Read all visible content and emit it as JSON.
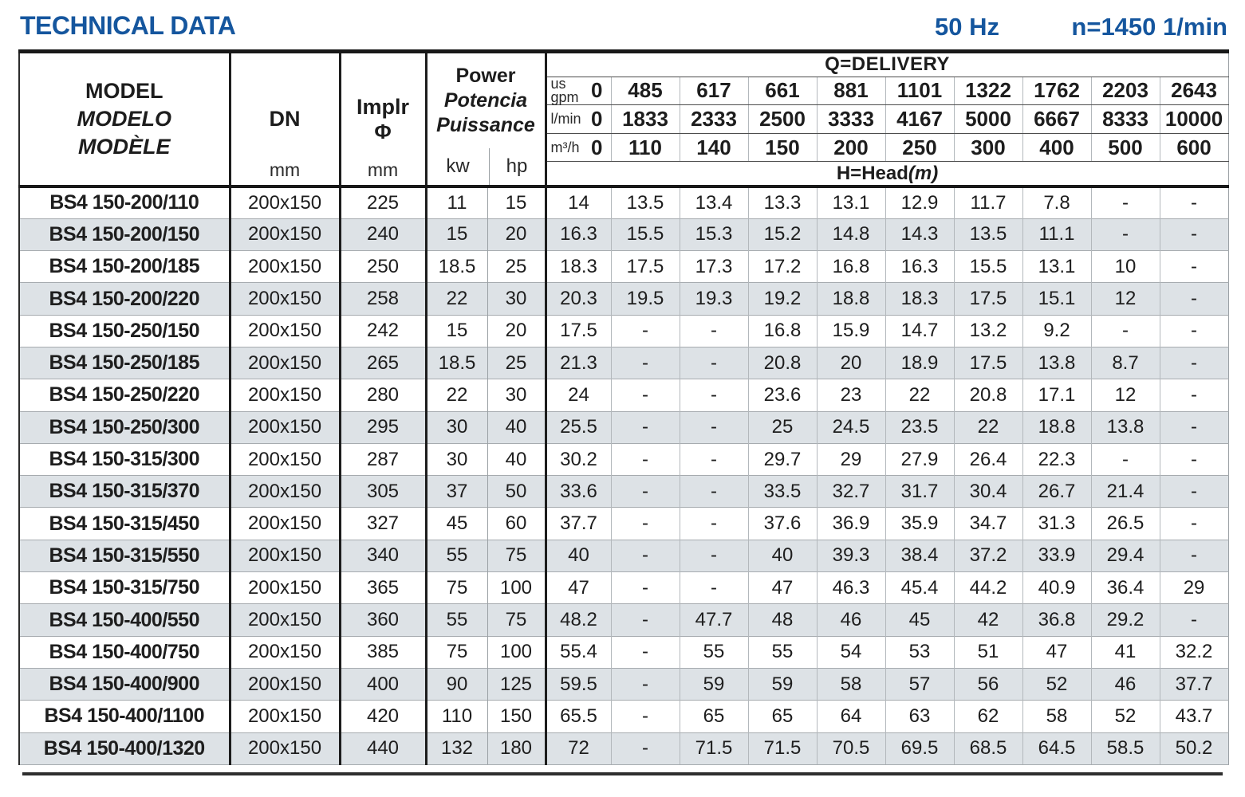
{
  "header": {
    "title": "TECHNICAL DATA",
    "frequency": "50 Hz",
    "speed": "n=1450 1/min"
  },
  "table": {
    "model_header": {
      "en": "MODEL",
      "es": "MODELO",
      "fr": "MODÈLE"
    },
    "dn": {
      "label": "DN",
      "unit": "mm"
    },
    "implr": {
      "label": "Implr",
      "symbol": "Φ",
      "unit": "mm"
    },
    "power": {
      "en": "Power",
      "es": "Potencia",
      "fr": "Puissance",
      "unit_kw": "kw",
      "unit_hp": "hp"
    },
    "delivery": {
      "label": "Q=DELIVERY",
      "units": [
        "us gpm",
        "l/min",
        "m³/h"
      ],
      "us_gpm": [
        "0",
        "485",
        "617",
        "661",
        "881",
        "1101",
        "1322",
        "1762",
        "2203",
        "2643"
      ],
      "l_min": [
        "0",
        "1833",
        "2333",
        "2500",
        "3333",
        "4167",
        "5000",
        "6667",
        "8333",
        "10000"
      ],
      "m3_h": [
        "0",
        "110",
        "140",
        "150",
        "200",
        "250",
        "300",
        "400",
        "500",
        "600"
      ],
      "head_label": "H=Head",
      "head_unit": "(m)"
    },
    "rows": [
      {
        "model": "BS4 150-200/110",
        "dn": "200x150",
        "implr": "225",
        "kw": "11",
        "hp": "15",
        "head": [
          "14",
          "13.5",
          "13.4",
          "13.3",
          "13.1",
          "12.9",
          "11.7",
          "7.8",
          "-",
          "-"
        ]
      },
      {
        "model": "BS4 150-200/150",
        "dn": "200x150",
        "implr": "240",
        "kw": "15",
        "hp": "20",
        "head": [
          "16.3",
          "15.5",
          "15.3",
          "15.2",
          "14.8",
          "14.3",
          "13.5",
          "11.1",
          "-",
          "-"
        ]
      },
      {
        "model": "BS4 150-200/185",
        "dn": "200x150",
        "implr": "250",
        "kw": "18.5",
        "hp": "25",
        "head": [
          "18.3",
          "17.5",
          "17.3",
          "17.2",
          "16.8",
          "16.3",
          "15.5",
          "13.1",
          "10",
          "-"
        ]
      },
      {
        "model": "BS4 150-200/220",
        "dn": "200x150",
        "implr": "258",
        "kw": "22",
        "hp": "30",
        "head": [
          "20.3",
          "19.5",
          "19.3",
          "19.2",
          "18.8",
          "18.3",
          "17.5",
          "15.1",
          "12",
          "-"
        ]
      },
      {
        "model": "BS4 150-250/150",
        "dn": "200x150",
        "implr": "242",
        "kw": "15",
        "hp": "20",
        "head": [
          "17.5",
          "-",
          "-",
          "16.8",
          "15.9",
          "14.7",
          "13.2",
          "9.2",
          "-",
          "-"
        ]
      },
      {
        "model": "BS4 150-250/185",
        "dn": "200x150",
        "implr": "265",
        "kw": "18.5",
        "hp": "25",
        "head": [
          "21.3",
          "-",
          "-",
          "20.8",
          "20",
          "18.9",
          "17.5",
          "13.8",
          "8.7",
          "-"
        ]
      },
      {
        "model": "BS4 150-250/220",
        "dn": "200x150",
        "implr": "280",
        "kw": "22",
        "hp": "30",
        "head": [
          "24",
          "-",
          "-",
          "23.6",
          "23",
          "22",
          "20.8",
          "17.1",
          "12",
          "-"
        ]
      },
      {
        "model": "BS4 150-250/300",
        "dn": "200x150",
        "implr": "295",
        "kw": "30",
        "hp": "40",
        "head": [
          "25.5",
          "-",
          "-",
          "25",
          "24.5",
          "23.5",
          "22",
          "18.8",
          "13.8",
          "-"
        ]
      },
      {
        "model": "BS4 150-315/300",
        "dn": "200x150",
        "implr": "287",
        "kw": "30",
        "hp": "40",
        "head": [
          "30.2",
          "-",
          "-",
          "29.7",
          "29",
          "27.9",
          "26.4",
          "22.3",
          "-",
          "-"
        ]
      },
      {
        "model": "BS4 150-315/370",
        "dn": "200x150",
        "implr": "305",
        "kw": "37",
        "hp": "50",
        "head": [
          "33.6",
          "-",
          "-",
          "33.5",
          "32.7",
          "31.7",
          "30.4",
          "26.7",
          "21.4",
          "-"
        ]
      },
      {
        "model": "BS4 150-315/450",
        "dn": "200x150",
        "implr": "327",
        "kw": "45",
        "hp": "60",
        "head": [
          "37.7",
          "-",
          "-",
          "37.6",
          "36.9",
          "35.9",
          "34.7",
          "31.3",
          "26.5",
          "-"
        ]
      },
      {
        "model": "BS4 150-315/550",
        "dn": "200x150",
        "implr": "340",
        "kw": "55",
        "hp": "75",
        "head": [
          "40",
          "-",
          "-",
          "40",
          "39.3",
          "38.4",
          "37.2",
          "33.9",
          "29.4",
          "-"
        ]
      },
      {
        "model": "BS4 150-315/750",
        "dn": "200x150",
        "implr": "365",
        "kw": "75",
        "hp": "100",
        "head": [
          "47",
          "-",
          "-",
          "47",
          "46.3",
          "45.4",
          "44.2",
          "40.9",
          "36.4",
          "29"
        ]
      },
      {
        "model": "BS4 150-400/550",
        "dn": "200x150",
        "implr": "360",
        "kw": "55",
        "hp": "75",
        "head": [
          "48.2",
          "-",
          "47.7",
          "48",
          "46",
          "45",
          "42",
          "36.8",
          "29.2",
          "-"
        ]
      },
      {
        "model": "BS4 150-400/750",
        "dn": "200x150",
        "implr": "385",
        "kw": "75",
        "hp": "100",
        "head": [
          "55.4",
          "-",
          "55",
          "55",
          "54",
          "53",
          "51",
          "47",
          "41",
          "32.2"
        ]
      },
      {
        "model": "BS4 150-400/900",
        "dn": "200x150",
        "implr": "400",
        "kw": "90",
        "hp": "125",
        "head": [
          "59.5",
          "-",
          "59",
          "59",
          "58",
          "57",
          "56",
          "52",
          "46",
          "37.7"
        ]
      },
      {
        "model": "BS4 150-400/1100",
        "dn": "200x150",
        "implr": "420",
        "kw": "110",
        "hp": "150",
        "head": [
          "65.5",
          "-",
          "65",
          "65",
          "64",
          "63",
          "62",
          "58",
          "52",
          "43.7"
        ]
      },
      {
        "model": "BS4 150-400/1320",
        "dn": "200x150",
        "implr": "440",
        "kw": "132",
        "hp": "180",
        "head": [
          "72",
          "-",
          "71.5",
          "71.5",
          "70.5",
          "69.5",
          "68.5",
          "64.5",
          "58.5",
          "50.2"
        ]
      }
    ]
  }
}
